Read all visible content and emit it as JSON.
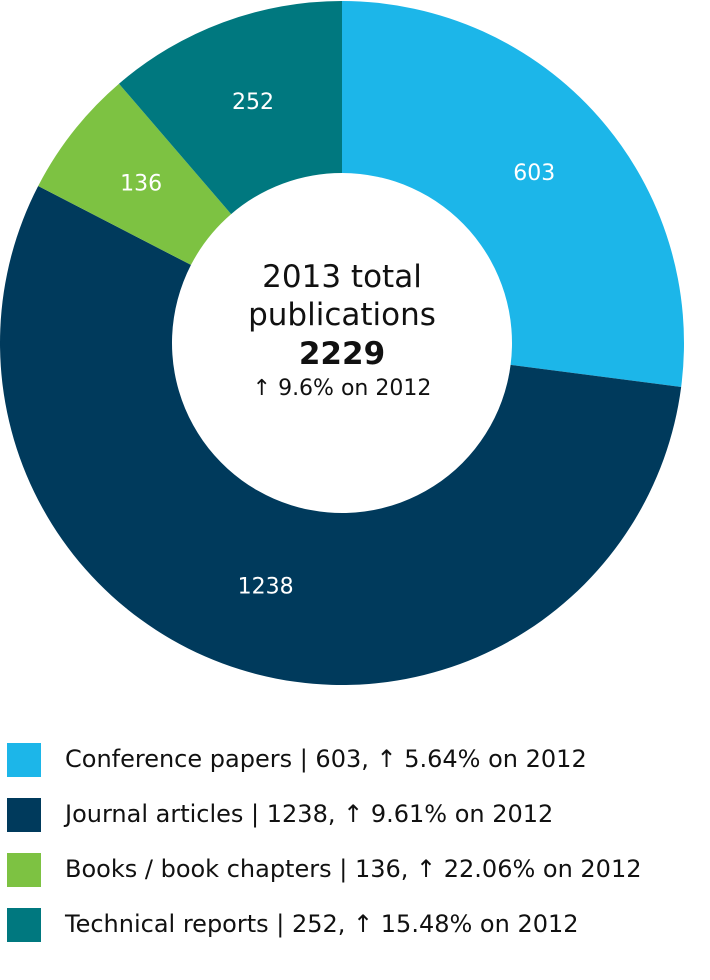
{
  "chart_data": {
    "type": "donut",
    "title": "2013 total publications",
    "total": 2229,
    "subtitle": "↑ 9.6% on 2012",
    "categories": [
      "Conference papers",
      "Journal articles",
      "Books / book chapters",
      "Technical reports"
    ],
    "values": [
      603,
      1238,
      136,
      252
    ],
    "colors": [
      "#1cb6e9",
      "#003a5c",
      "#7dc242",
      "#00787f"
    ],
    "legend_labels": [
      "Conference papers | 603, ↑ 5.64% on 2012",
      "Journal articles | 1238, ↑ 9.61% on 2012",
      "Books / book chapters | 136, ↑ 22.06% on 2012",
      "Technical reports | 252, ↑ 15.48% on 2012"
    ]
  }
}
